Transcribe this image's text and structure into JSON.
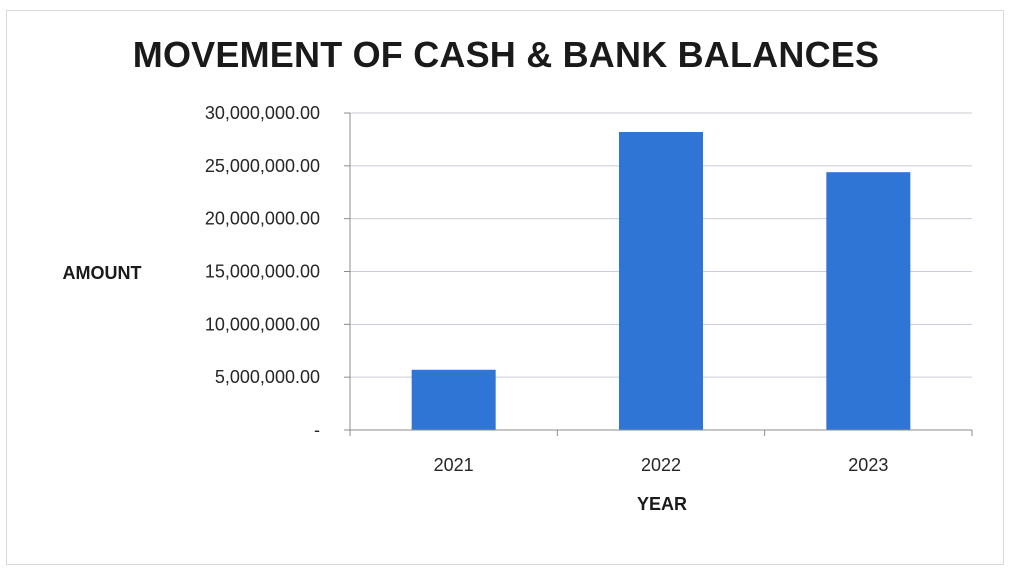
{
  "chart_data": {
    "type": "bar",
    "title": "MOVEMENT OF CASH & BANK BALANCES",
    "xlabel": "YEAR",
    "ylabel": "AMOUNT",
    "categories": [
      "2021",
      "2022",
      "2023"
    ],
    "values": [
      5700000,
      28200000,
      24400000
    ],
    "ylim": [
      0,
      30000000
    ],
    "yticks": [
      0,
      5000000,
      10000000,
      15000000,
      20000000,
      25000000,
      30000000
    ],
    "ytick_labels": [
      "-",
      "5,000,000.00",
      "10,000,000.00",
      "15,000,000.00",
      "20,000,000.00",
      "25,000,000.00",
      "30,000,000.00"
    ],
    "grid": true,
    "legend": "none",
    "bar_color": "#2e75d6",
    "grid_color": "#c9cdd6"
  }
}
